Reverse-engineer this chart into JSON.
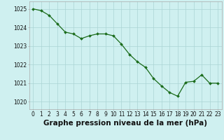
{
  "x": [
    0,
    1,
    2,
    3,
    4,
    5,
    6,
    7,
    8,
    9,
    10,
    11,
    12,
    13,
    14,
    15,
    16,
    17,
    18,
    19,
    20,
    21,
    22,
    23
  ],
  "y": [
    1025.0,
    1024.9,
    1024.65,
    1024.2,
    1023.75,
    1023.65,
    1023.4,
    1023.55,
    1023.65,
    1023.65,
    1023.55,
    1023.1,
    1022.55,
    1022.15,
    1021.85,
    1021.25,
    1020.85,
    1020.5,
    1020.3,
    1021.05,
    1021.1,
    1021.45,
    1021.0,
    1021.0
  ],
  "line_color": "#1a6b1a",
  "marker_color": "#1a6b1a",
  "bg_color": "#cff0f0",
  "grid_color": "#aad4d4",
  "xlabel": "Graphe pression niveau de la mer (hPa)",
  "xlabel_fontsize": 7.5,
  "ylim_min": 1019.6,
  "ylim_max": 1025.4,
  "yticks": [
    1020,
    1021,
    1022,
    1023,
    1024,
    1025
  ],
  "xticks": [
    0,
    1,
    2,
    3,
    4,
    5,
    6,
    7,
    8,
    9,
    10,
    11,
    12,
    13,
    14,
    15,
    16,
    17,
    18,
    19,
    20,
    21,
    22,
    23
  ],
  "tick_fontsize": 5.5,
  "spine_color": "#aaaaaa"
}
